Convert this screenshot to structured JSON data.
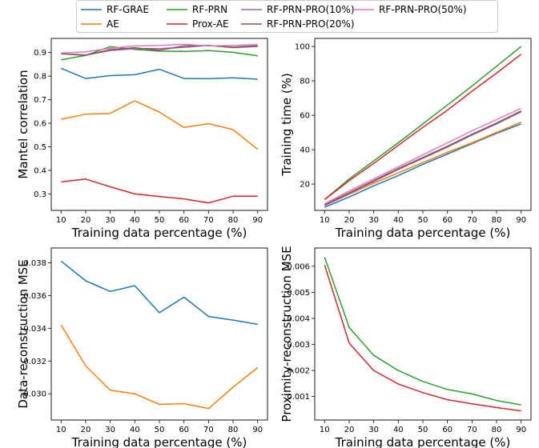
{
  "legend": [
    {
      "name": "RF-GRAE",
      "color": "#1f77b4"
    },
    {
      "name": "AE",
      "color": "#ff7f0e"
    },
    {
      "name": "RF-PRN",
      "color": "#2ca02c"
    },
    {
      "name": "Prox-AE",
      "color": "#d62728"
    },
    {
      "name": "RF-PRN-PRO(10%)",
      "color": "#9467bd"
    },
    {
      "name": "RF-PRN-PRO(20%)",
      "color": "#8c564b"
    },
    {
      "name": "RF-PRN-PRO(50%)",
      "color": "#e377c2"
    }
  ],
  "chart_data": [
    {
      "type": "line",
      "xlabel": "Training data percentage (%)",
      "ylabel": "Mantel correlation",
      "x": [
        10,
        20,
        30,
        40,
        50,
        60,
        70,
        80,
        90
      ],
      "xticks": [
        "10",
        "20",
        "30",
        "40",
        "50",
        "60",
        "70",
        "80",
        "90"
      ],
      "xlim": [
        6,
        94
      ],
      "ylim": [
        0.23,
        0.96
      ],
      "yticks": [
        0.3,
        0.4,
        0.5,
        0.6,
        0.7,
        0.8,
        0.9
      ],
      "ytick_labels": [
        "0.3",
        "0.4",
        "0.5",
        "0.6",
        "0.7",
        "0.8",
        "0.9"
      ],
      "series": [
        {
          "name": "RF-GRAE",
          "color": "#1f77b4",
          "values": [
            0.833,
            0.79,
            0.802,
            0.806,
            0.829,
            0.79,
            0.789,
            0.793,
            0.787
          ]
        },
        {
          "name": "AE",
          "color": "#ff7f0e",
          "values": [
            0.617,
            0.638,
            0.642,
            0.695,
            0.647,
            0.582,
            0.598,
            0.573,
            0.489
          ]
        },
        {
          "name": "RF-PRN",
          "color": "#2ca02c",
          "values": [
            0.869,
            0.888,
            0.925,
            0.913,
            0.906,
            0.905,
            0.908,
            0.901,
            0.886
          ]
        },
        {
          "name": "Prox-AE",
          "color": "#d62728",
          "values": [
            0.351,
            0.363,
            0.33,
            0.3,
            0.289,
            0.279,
            0.262,
            0.29,
            0.29
          ]
        },
        {
          "name": "RF-PRN-PRO(10%)",
          "color": "#9467bd",
          "values": [
            0.895,
            0.89,
            0.908,
            0.917,
            0.917,
            0.922,
            0.93,
            0.923,
            0.93
          ]
        },
        {
          "name": "RF-PRN-PRO(20%)",
          "color": "#8c564b",
          "values": [
            0.895,
            0.888,
            0.912,
            0.92,
            0.91,
            0.928,
            0.93,
            0.921,
            0.926
          ]
        },
        {
          "name": "RF-PRN-PRO(50%)",
          "color": "#e377c2",
          "values": [
            0.898,
            0.903,
            0.918,
            0.928,
            0.93,
            0.935,
            0.928,
            0.93,
            0.934
          ]
        }
      ]
    },
    {
      "type": "line",
      "xlabel": "Training data percentage (%)",
      "ylabel": "Training time (%)",
      "x": [
        10,
        20,
        30,
        40,
        50,
        60,
        70,
        80,
        90
      ],
      "xticks": [
        "10",
        "20",
        "30",
        "40",
        "50",
        "60",
        "70",
        "80",
        "90"
      ],
      "xlim": [
        6,
        94
      ],
      "ylim": [
        4.7,
        104.7
      ],
      "yticks": [
        20,
        40,
        60,
        80,
        100
      ],
      "ytick_labels": [
        "20",
        "40",
        "60",
        "80",
        "100"
      ],
      "series": [
        {
          "name": "RF-GRAE",
          "color": "#1f77b4",
          "values": [
            6.5,
            12.5,
            19,
            25,
            31.5,
            37.5,
            43.5,
            49.5,
            55
          ]
        },
        {
          "name": "AE",
          "color": "#ff7f0e",
          "values": [
            7.5,
            14,
            20.5,
            26.5,
            32.5,
            38.5,
            44,
            50,
            56
          ]
        },
        {
          "name": "RF-PRN",
          "color": "#2ca02c",
          "values": [
            11,
            23,
            33.5,
            44,
            55,
            66,
            77,
            88.5,
            100
          ]
        },
        {
          "name": "Prox-AE",
          "color": "#d62728",
          "values": [
            11,
            22,
            32,
            42.5,
            53,
            63,
            74,
            84.5,
            95.5
          ]
        },
        {
          "name": "RF-PRN-PRO(10%)",
          "color": "#9467bd",
          "values": [
            7.5,
            14.5,
            21.5,
            28.5,
            35,
            41.5,
            48.5,
            55,
            62
          ]
        },
        {
          "name": "RF-PRN-PRO(20%)",
          "color": "#8c564b",
          "values": [
            8,
            15,
            22,
            29,
            35.5,
            42,
            49,
            55.5,
            62.5
          ]
        },
        {
          "name": "RF-PRN-PRO(50%)",
          "color": "#e377c2",
          "values": [
            8.5,
            16,
            23,
            30,
            37,
            44,
            51,
            57.5,
            64
          ]
        }
      ]
    },
    {
      "type": "line",
      "xlabel": "Training data percentage (%)",
      "ylabel": "Data-reconstruction MSE",
      "x": [
        10,
        20,
        30,
        40,
        50,
        60,
        70,
        80,
        90
      ],
      "xticks": [
        "10",
        "20",
        "30",
        "40",
        "50",
        "60",
        "70",
        "80",
        "90"
      ],
      "xlim": [
        6,
        94
      ],
      "ylim": [
        0.0284,
        0.0389
      ],
      "yticks": [
        0.03,
        0.032,
        0.034,
        0.036,
        0.038
      ],
      "ytick_labels": [
        "0.030",
        "0.032",
        "0.034",
        "0.036",
        "0.038"
      ],
      "series": [
        {
          "name": "RF-GRAE",
          "color": "#1f77b4",
          "values": [
            0.0381,
            0.0369,
            0.03625,
            0.0366,
            0.03495,
            0.0359,
            0.03472,
            0.0345,
            0.03424
          ]
        },
        {
          "name": "AE",
          "color": "#ff7f0e",
          "values": [
            0.0342,
            0.0317,
            0.03022,
            0.03,
            0.02935,
            0.0294,
            0.0291,
            0.0304,
            0.0316
          ]
        }
      ]
    },
    {
      "type": "line",
      "xlabel": "Training data percentage (%)",
      "ylabel": "Proximity-reconstruction MSE",
      "x": [
        10,
        20,
        30,
        40,
        50,
        60,
        70,
        80,
        90
      ],
      "xticks": [
        "10",
        "20",
        "30",
        "40",
        "50",
        "60",
        "70",
        "80",
        "90"
      ],
      "xlim": [
        6,
        94
      ],
      "ylim": [
        0.0001,
        0.0067
      ],
      "yticks": [
        0.001,
        0.002,
        0.003,
        0.004,
        0.005,
        0.006
      ],
      "ytick_labels": [
        "0.001",
        "0.002",
        "0.003",
        "0.004",
        "0.005",
        "0.006"
      ],
      "series": [
        {
          "name": "RF-PRN",
          "color": "#2ca02c",
          "values": [
            0.00635,
            0.00365,
            0.00258,
            0.002,
            0.00158,
            0.00127,
            0.0011,
            0.00085,
            0.00068
          ]
        },
        {
          "name": "Prox-AE",
          "color": "#d62728",
          "values": [
            0.00605,
            0.00305,
            0.002,
            0.00148,
            0.00115,
            0.00088,
            0.00072,
            0.00058,
            0.00045
          ]
        }
      ]
    }
  ]
}
